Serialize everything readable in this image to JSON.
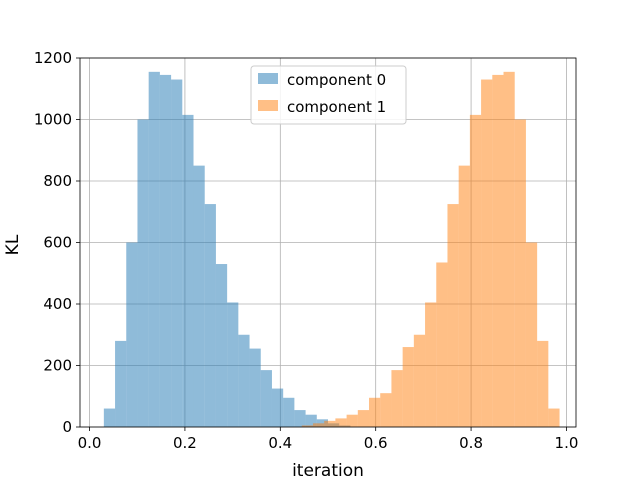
{
  "chart_data": {
    "type": "bar",
    "title": "",
    "xlabel": "iteration",
    "ylabel": "KL",
    "xlim": [
      -0.02,
      1.02
    ],
    "ylim": [
      0,
      1200
    ],
    "xticks": [
      0.0,
      0.2,
      0.4,
      0.6,
      0.8,
      1.0
    ],
    "xtick_labels": [
      "0.0",
      "0.2",
      "0.4",
      "0.6",
      "0.8",
      "1.0"
    ],
    "yticks": [
      0,
      200,
      400,
      600,
      800,
      1000,
      1200
    ],
    "ytick_labels": [
      "0",
      "200",
      "400",
      "600",
      "800",
      "1000",
      "1200"
    ],
    "grid": true,
    "legend_position": "top-center",
    "bin_width": 0.0235,
    "series": [
      {
        "name": "component 0",
        "color": "#1f77b4",
        "opacity": 0.5,
        "bins": [
          [
            0.03,
            60
          ],
          [
            0.0535,
            280
          ],
          [
            0.077,
            600
          ],
          [
            0.1005,
            1000
          ],
          [
            0.124,
            1155
          ],
          [
            0.1475,
            1145
          ],
          [
            0.171,
            1130
          ],
          [
            0.1945,
            1015
          ],
          [
            0.218,
            850
          ],
          [
            0.2415,
            725
          ],
          [
            0.265,
            530
          ],
          [
            0.2885,
            405
          ],
          [
            0.312,
            300
          ],
          [
            0.3355,
            255
          ],
          [
            0.359,
            185
          ],
          [
            0.3825,
            125
          ],
          [
            0.406,
            95
          ],
          [
            0.4295,
            55
          ],
          [
            0.453,
            40
          ],
          [
            0.4765,
            25
          ],
          [
            0.5,
            12
          ],
          [
            0.5235,
            5
          ]
        ]
      },
      {
        "name": "component 1",
        "color": "#ff7f0e",
        "opacity": 0.5,
        "bins": [
          [
            0.445,
            5
          ],
          [
            0.4685,
            12
          ],
          [
            0.492,
            20
          ],
          [
            0.5155,
            28
          ],
          [
            0.539,
            40
          ],
          [
            0.5625,
            55
          ],
          [
            0.586,
            95
          ],
          [
            0.6095,
            110
          ],
          [
            0.633,
            185
          ],
          [
            0.6565,
            260
          ],
          [
            0.68,
            300
          ],
          [
            0.7035,
            405
          ],
          [
            0.727,
            535
          ],
          [
            0.7505,
            725
          ],
          [
            0.774,
            850
          ],
          [
            0.7975,
            1015
          ],
          [
            0.821,
            1130
          ],
          [
            0.8445,
            1145
          ],
          [
            0.868,
            1155
          ],
          [
            0.8915,
            1000
          ],
          [
            0.915,
            600
          ],
          [
            0.9385,
            280
          ],
          [
            0.962,
            60
          ]
        ]
      }
    ]
  }
}
